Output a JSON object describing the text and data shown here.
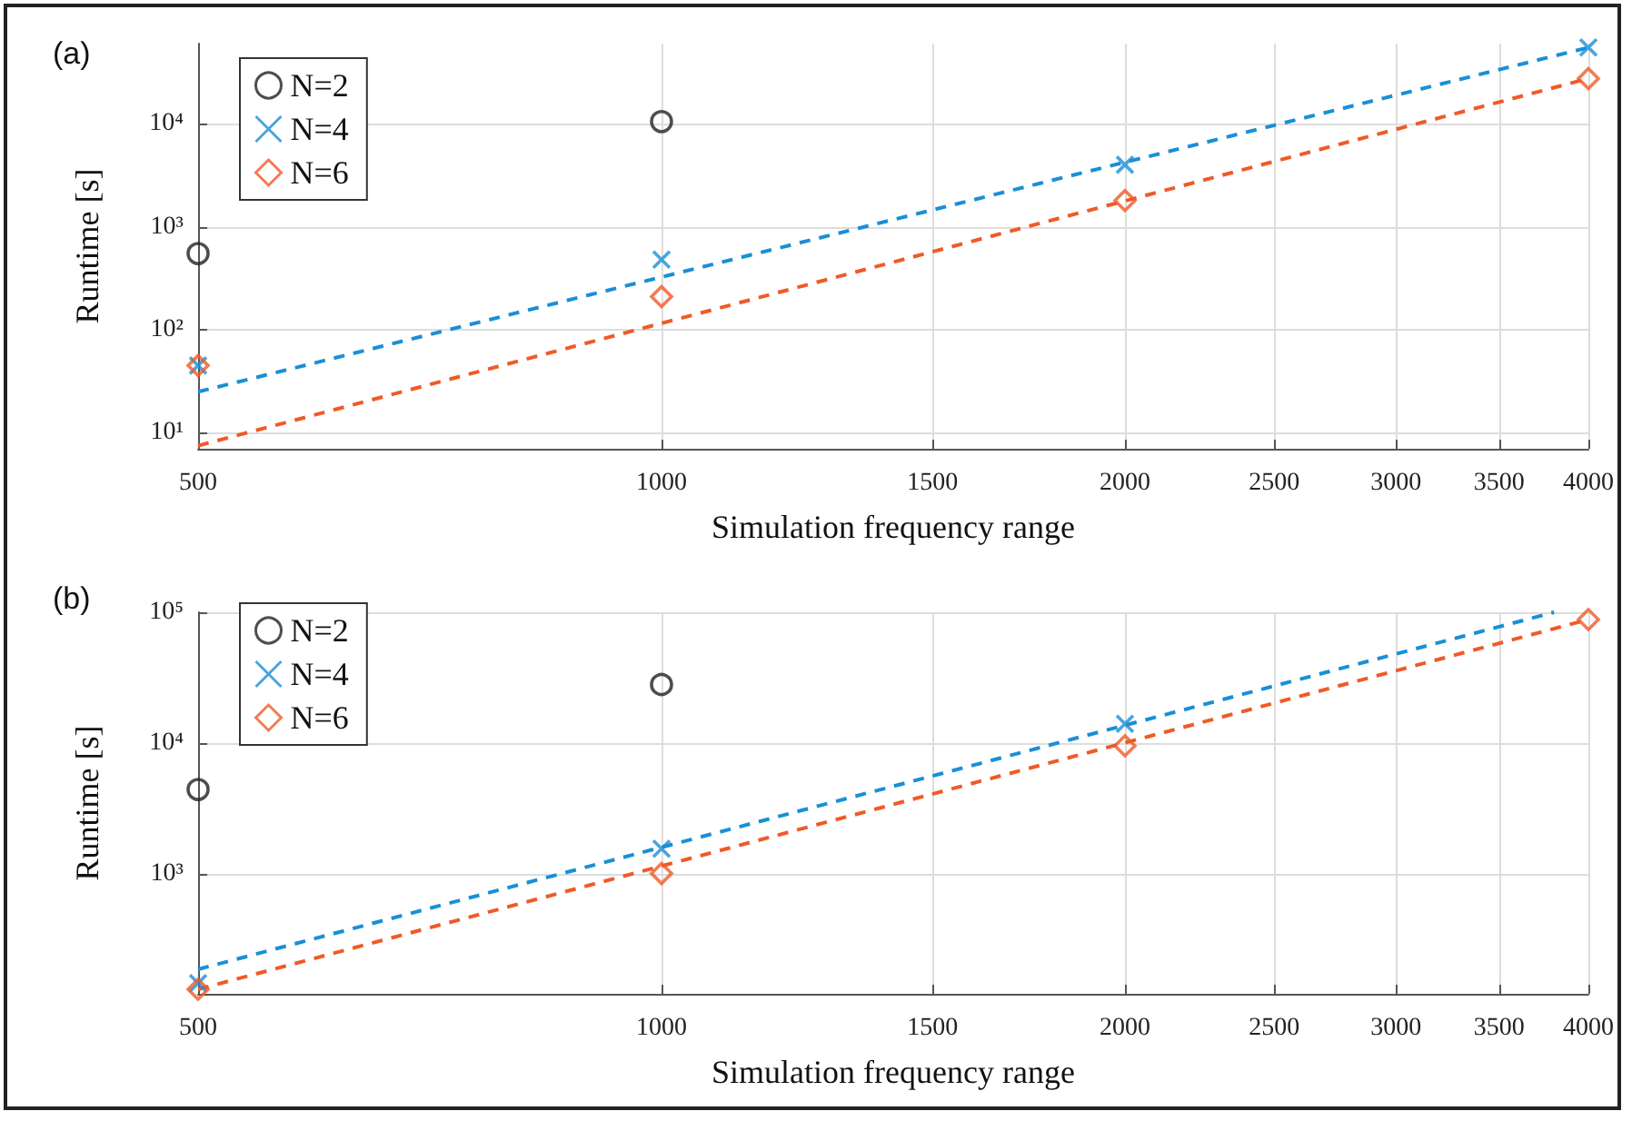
{
  "chart_data": [
    {
      "type": "scatter",
      "title": "(a)",
      "xlabel": "Simulation frequency range",
      "ylabel": "Runtime [s]",
      "log": "xy",
      "grid": true,
      "legend": "top left",
      "x": [
        500,
        1000,
        2000,
        4000
      ],
      "xlim": [
        500,
        4000
      ],
      "xticks": [
        500,
        1000,
        1500,
        2000,
        2500,
        3000,
        3500,
        4000
      ],
      "ylim": [
        7,
        60000
      ],
      "yticks": [
        {
          "value": 10,
          "label": "10¹"
        },
        {
          "value": 100,
          "label": "10²"
        },
        {
          "value": 1000,
          "label": "10³"
        },
        {
          "value": 10000,
          "label": "10⁴"
        }
      ],
      "series": [
        {
          "name": "N=2",
          "color": "#222222",
          "marker": "circle",
          "values": [
            550,
            10500,
            null,
            null
          ]
        },
        {
          "name": "N=4",
          "color": "#1a8fd6",
          "marker": "cross",
          "values": [
            45,
            480,
            4000,
            55000
          ]
        },
        {
          "name": "N=6",
          "color": "#f05a28",
          "marker": "diamond",
          "values": [
            45,
            210,
            1800,
            27500
          ]
        },
        {
          "type": "line",
          "color": "#1a8fd6",
          "marker": "none",
          "line_style": "dashed",
          "x": [
            500,
            4000
          ],
          "values": [
            25,
            55000
          ]
        },
        {
          "type": "line",
          "color": "#f05a28",
          "marker": "none",
          "line_style": "dashed",
          "x": [
            500,
            4000
          ],
          "values": [
            7.5,
            27500
          ]
        }
      ]
    },
    {
      "type": "scatter",
      "title": "(b)",
      "xlabel": "Simulation frequency range",
      "ylabel": "Runtime [s]",
      "log": "xy",
      "grid": true,
      "legend": "top left",
      "x": [
        500,
        1000,
        2000,
        4000
      ],
      "xlim": [
        500,
        4000
      ],
      "xticks": [
        500,
        1000,
        1500,
        2000,
        2500,
        3000,
        3500,
        4000
      ],
      "ylim": [
        120,
        100000
      ],
      "yticks": [
        {
          "value": 1000,
          "label": "10³"
        },
        {
          "value": 10000,
          "label": "10⁴"
        },
        {
          "value": 100000,
          "label": "10⁵"
        }
      ],
      "series": [
        {
          "name": "N=2",
          "color": "#222222",
          "marker": "circle",
          "values": [
            4400,
            28000,
            null,
            null
          ]
        },
        {
          "name": "N=4",
          "color": "#1a8fd6",
          "marker": "cross",
          "values": [
            145,
            1550,
            14000,
            null
          ]
        },
        {
          "name": "N=6",
          "color": "#f05a28",
          "marker": "diamond",
          "values": [
            130,
            1000,
            9500,
            88000
          ]
        },
        {
          "type": "line",
          "color": "#1a8fd6",
          "marker": "none",
          "line_style": "dashed",
          "x": [
            500,
            3800
          ],
          "values": [
            185,
            100000
          ]
        },
        {
          "type": "line",
          "color": "#f05a28",
          "marker": "none",
          "line_style": "dashed",
          "x": [
            500,
            4000
          ],
          "values": [
            130,
            88000
          ]
        }
      ]
    }
  ]
}
